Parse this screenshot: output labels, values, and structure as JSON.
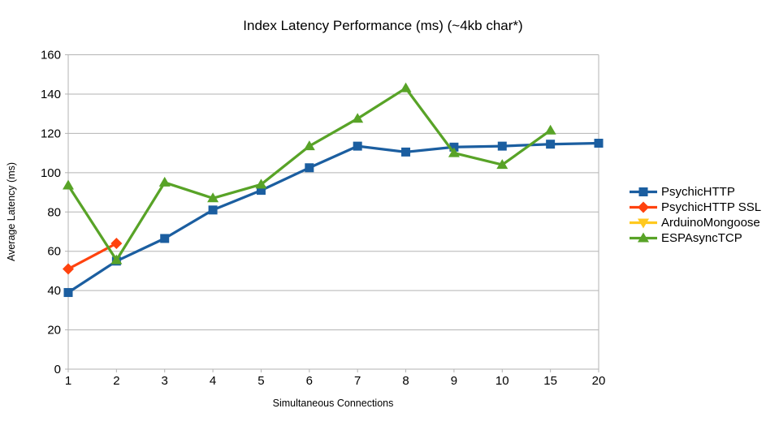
{
  "chart_data": {
    "type": "line",
    "title": "Index Latency Performance (ms) (~4kb char*)",
    "xlabel": "Simultaneous Connections",
    "ylabel": "Average Latency (ms)",
    "categories": [
      "1",
      "2",
      "3",
      "4",
      "5",
      "6",
      "7",
      "8",
      "9",
      "10",
      "15",
      "20"
    ],
    "ylim": [
      0,
      160
    ],
    "yticks": [
      0,
      20,
      40,
      60,
      80,
      100,
      120,
      140,
      160
    ],
    "grid": "horizontal",
    "legend_position": "right",
    "series": [
      {
        "name": "PsychicHTTP",
        "color": "#1B5EA0",
        "marker": "square",
        "values": [
          39,
          55,
          66.5,
          81,
          91,
          102.5,
          113.5,
          110.5,
          113,
          113.5,
          114.5,
          115
        ]
      },
      {
        "name": "PsychicHTTP SSL",
        "color": "#FF420E",
        "marker": "diamond",
        "values": [
          51,
          64,
          null,
          null,
          null,
          null,
          null,
          null,
          null,
          null,
          null,
          null
        ]
      },
      {
        "name": "ArduinoMongoose",
        "color": "#FFC91F",
        "marker": "triangle-down",
        "values": [
          null,
          null,
          null,
          null,
          null,
          null,
          null,
          null,
          null,
          null,
          null,
          null
        ]
      },
      {
        "name": "ESPAsyncTCP",
        "color": "#58A327",
        "marker": "triangle-up",
        "values": [
          93.5,
          55.5,
          95,
          87,
          94,
          113.5,
          127.5,
          143,
          110,
          104,
          121.5,
          null
        ]
      }
    ],
    "axis_color": "#b3b3b3",
    "text_color": "#000000",
    "background": "#ffffff"
  }
}
